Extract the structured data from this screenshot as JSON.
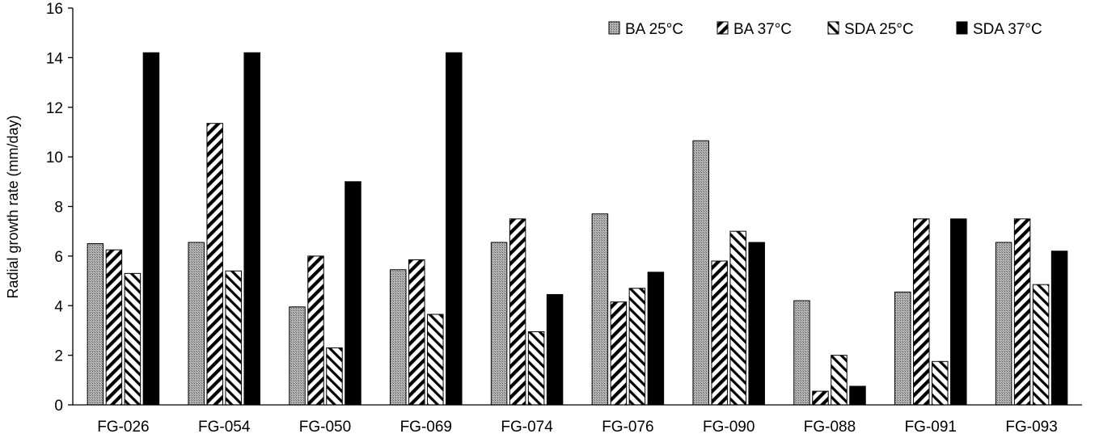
{
  "chart_data": {
    "type": "bar",
    "title": "",
    "xlabel": "",
    "ylabel": "Radial growth rate (mm/day)",
    "ylim": [
      0,
      16
    ],
    "yticks": [
      0,
      2,
      4,
      6,
      8,
      10,
      12,
      14,
      16
    ],
    "grid": false,
    "legend_position": "top-right",
    "categories": [
      "FG-026",
      "FG-054",
      "FG-050",
      "FG-069",
      "FG-074",
      "FG-076",
      "FG-090",
      "FG-088",
      "FG-091",
      "FG-093"
    ],
    "series": [
      {
        "name": "BA 25°C",
        "pattern": "dotted-gray",
        "values": [
          6.5,
          6.55,
          3.95,
          5.45,
          6.55,
          7.7,
          10.65,
          4.2,
          4.55,
          6.55
        ]
      },
      {
        "name": "BA 37°C",
        "pattern": "back-diagonal-stripes",
        "values": [
          6.25,
          11.35,
          6.0,
          5.85,
          7.5,
          4.15,
          5.8,
          0.55,
          7.5,
          7.5
        ]
      },
      {
        "name": "SDA 25°C",
        "pattern": "forward-diagonal-stripes",
        "values": [
          5.3,
          5.4,
          2.3,
          3.65,
          2.95,
          4.7,
          7.0,
          2.0,
          1.75,
          4.85
        ]
      },
      {
        "name": "SDA 37°C",
        "pattern": "solid-black",
        "values": [
          14.2,
          14.2,
          9.0,
          14.2,
          4.45,
          5.35,
          6.55,
          0.75,
          7.5,
          6.2
        ]
      }
    ]
  }
}
